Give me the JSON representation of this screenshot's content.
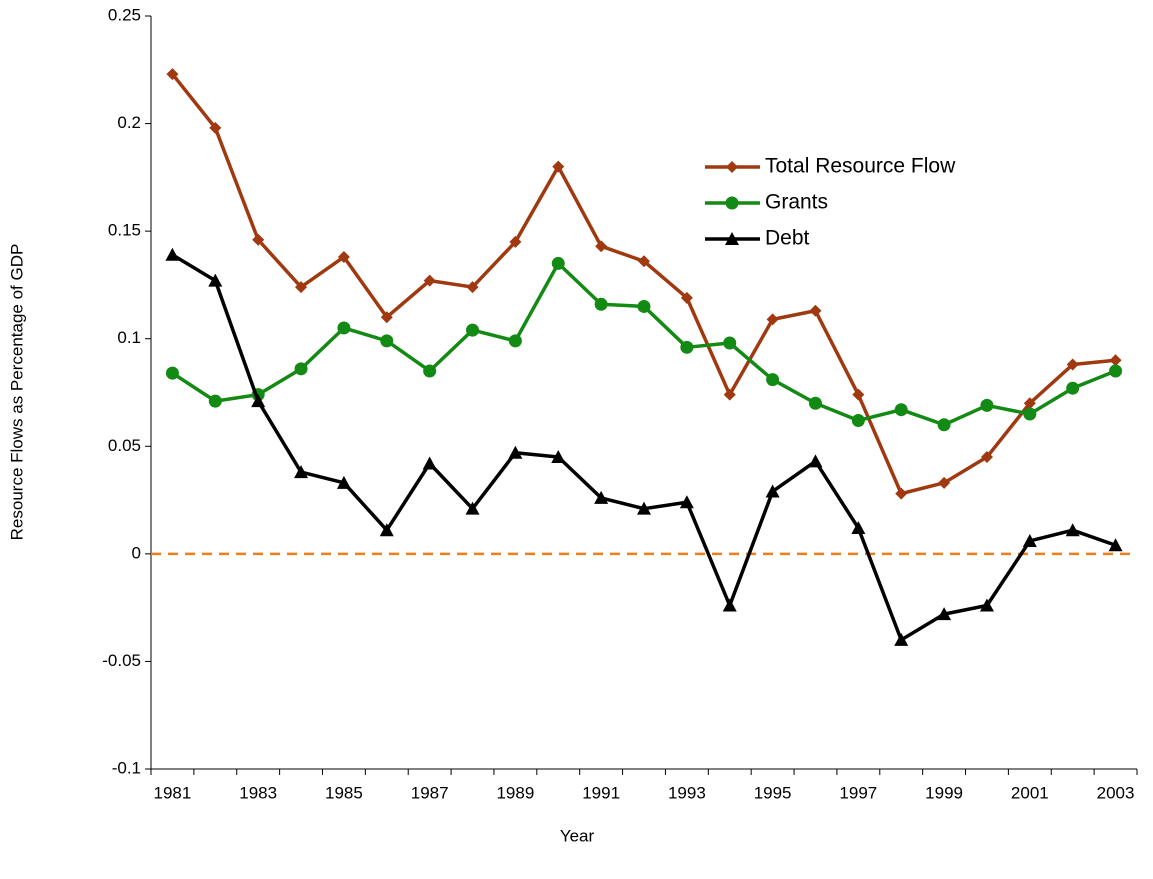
{
  "chart_data": {
    "type": "line",
    "x_label": "Year",
    "y_label": "Resource Flows as Percentage of GDP",
    "categories": [
      "1981",
      null,
      "1983",
      null,
      "1985",
      null,
      "1987",
      null,
      "1989",
      null,
      "1991",
      null,
      "1993",
      null,
      "1995",
      null,
      "1997",
      null,
      "1999",
      null,
      "2001",
      null,
      "2003"
    ],
    "series": [
      {
        "name": "Total Resource Flow",
        "color": "#a0390f",
        "marker": "diamond",
        "values": [
          0.223,
          0.198,
          0.146,
          0.124,
          0.138,
          0.11,
          0.127,
          0.124,
          0.145,
          0.18,
          0.143,
          0.136,
          0.119,
          0.074,
          0.109,
          0.113,
          0.074,
          0.028,
          0.033,
          0.045,
          0.07,
          0.088,
          0.09
        ]
      },
      {
        "name": "Grants",
        "color": "#138a13",
        "marker": "circle",
        "values": [
          0.084,
          0.071,
          0.074,
          0.086,
          0.105,
          0.099,
          0.085,
          0.104,
          0.099,
          0.135,
          0.116,
          0.115,
          0.096,
          0.098,
          0.081,
          0.07,
          0.062,
          0.067,
          0.06,
          0.069,
          0.065,
          0.077,
          0.085
        ]
      },
      {
        "name": "Debt",
        "color": "#000000",
        "marker": "triangle",
        "values": [
          0.139,
          0.127,
          0.071,
          0.038,
          0.033,
          0.011,
          0.042,
          0.021,
          0.047,
          0.045,
          0.026,
          0.021,
          0.024,
          -0.024,
          0.029,
          0.043,
          0.012,
          -0.04,
          -0.028,
          -0.024,
          0.006,
          0.011,
          0.004
        ]
      }
    ],
    "ylim": [
      -0.1,
      0.25
    ],
    "yticks": [
      -0.1,
      -0.05,
      0,
      0.05,
      0.1,
      0.15,
      0.2,
      0.25
    ],
    "grid": false,
    "reference_line": {
      "value": 0,
      "color": "#f07f1a"
    },
    "legend_position": "right"
  }
}
